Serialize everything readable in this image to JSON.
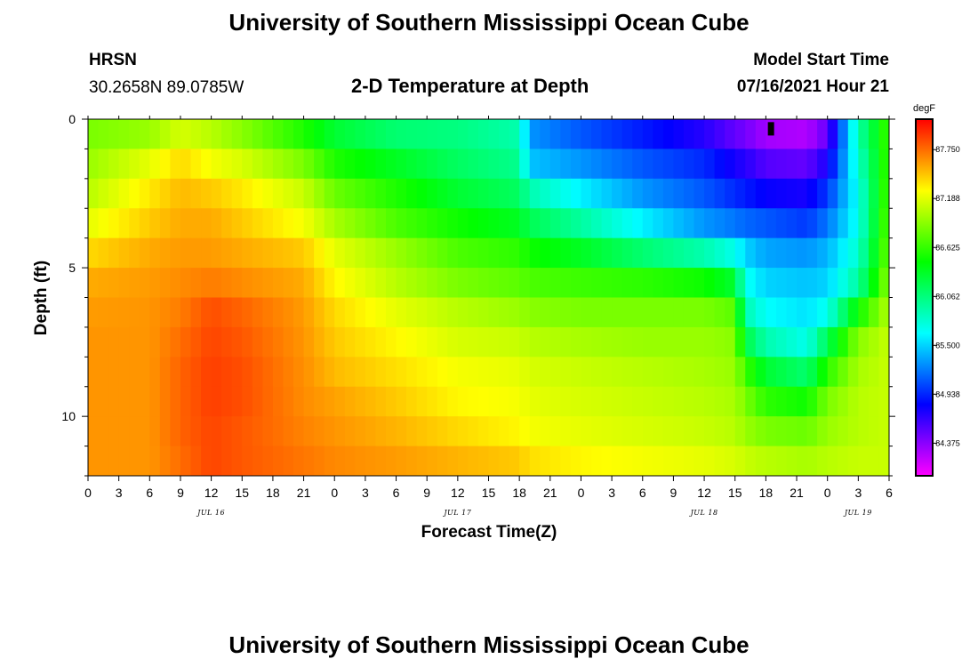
{
  "page": {
    "title_top": "University of Southern Mississippi Ocean Cube",
    "title_bottom": "University of Southern Mississippi Ocean Cube",
    "station": "HRSN",
    "coords": "30.2658N  89.0785W",
    "plot_title": "2-D Temperature at Depth",
    "model_label": "Model Start Time",
    "model_time": "07/16/2021 Hour 21"
  },
  "chart_data": {
    "type": "heatmap",
    "title": "2-D Temperature at Depth",
    "xlabel": "Forecast Time(Z)",
    "ylabel": "Depth (ft)",
    "x_range_hours": [
      0,
      78
    ],
    "x_tick_labels": [
      "0",
      "3",
      "6",
      "9",
      "12",
      "15",
      "18",
      "21",
      "0",
      "3",
      "6",
      "9",
      "12",
      "15",
      "18",
      "21",
      "0",
      "3",
      "6",
      "9",
      "12",
      "15",
      "18",
      "21",
      "0",
      "3",
      "6"
    ],
    "date_labels": [
      {
        "label": "JUL 16",
        "hour": 12
      },
      {
        "label": "JUL 17",
        "hour": 36
      },
      {
        "label": "JUL 18",
        "hour": 60
      },
      {
        "label": "JUL 19",
        "hour": 75
      }
    ],
    "y_range": [
      0,
      12
    ],
    "y_ticks": [
      0,
      5,
      10
    ],
    "y_inverted": true,
    "colorbar": {
      "unit": "degF",
      "min": 84.0,
      "max": 88.1,
      "labels": [
        "87.750",
        "87.188",
        "86.625",
        "86.062",
        "85.500",
        "84.938",
        "84.375"
      ],
      "values": [
        87.75,
        87.188,
        86.625,
        86.062,
        85.5,
        84.938,
        84.375
      ]
    },
    "depths_ft": [
      0.5,
      1.5,
      2.5,
      3.5,
      4.5,
      5.5,
      6.5,
      7.5,
      8.5,
      9.5,
      10.5,
      11.5
    ],
    "profiles": [
      {
        "hour": 0,
        "temps": [
          86.85,
          86.95,
          87.05,
          87.2,
          87.4,
          87.55,
          87.6,
          87.62,
          87.62,
          87.62,
          87.62,
          87.62
        ]
      },
      {
        "hour": 6,
        "temps": [
          86.95,
          87.2,
          87.35,
          87.45,
          87.55,
          87.6,
          87.62,
          87.62,
          87.62,
          87.62,
          87.62,
          87.62
        ]
      },
      {
        "hour": 9,
        "temps": [
          87.15,
          87.4,
          87.5,
          87.55,
          87.6,
          87.65,
          87.7,
          87.75,
          87.78,
          87.78,
          87.78,
          87.75
        ]
      },
      {
        "hour": 12,
        "temps": [
          87.05,
          87.25,
          87.45,
          87.55,
          87.6,
          87.7,
          87.85,
          87.88,
          87.9,
          87.9,
          87.88,
          87.88
        ]
      },
      {
        "hour": 15,
        "temps": [
          86.9,
          87.15,
          87.35,
          87.45,
          87.55,
          87.65,
          87.78,
          87.82,
          87.85,
          87.85,
          87.82,
          87.82
        ]
      },
      {
        "hour": 21,
        "temps": [
          86.55,
          86.85,
          87.1,
          87.25,
          87.45,
          87.55,
          87.6,
          87.62,
          87.64,
          87.65,
          87.68,
          87.72
        ]
      },
      {
        "hour": 24,
        "temps": [
          86.3,
          86.55,
          86.8,
          87.0,
          87.2,
          87.3,
          87.4,
          87.45,
          87.5,
          87.58,
          87.62,
          87.66
        ]
      },
      {
        "hour": 30,
        "temps": [
          86.1,
          86.35,
          86.55,
          86.7,
          86.95,
          87.05,
          87.2,
          87.3,
          87.38,
          87.45,
          87.52,
          87.6
        ]
      },
      {
        "hour": 36,
        "temps": [
          86.05,
          86.15,
          86.3,
          86.5,
          86.7,
          86.85,
          87.05,
          87.15,
          87.25,
          87.3,
          87.4,
          87.52
        ]
      },
      {
        "hour": 42,
        "temps": [
          85.9,
          86.0,
          86.15,
          86.35,
          86.6,
          86.75,
          86.95,
          87.1,
          87.2,
          87.25,
          87.3,
          87.45
        ]
      },
      {
        "hour": 43,
        "temps": [
          85.3,
          85.45,
          85.9,
          86.2,
          86.5,
          86.7,
          86.9,
          87.05,
          87.15,
          87.2,
          87.25,
          87.38
        ]
      },
      {
        "hour": 48,
        "temps": [
          85.1,
          85.3,
          85.6,
          85.95,
          86.35,
          86.65,
          86.85,
          87.0,
          87.1,
          87.15,
          87.2,
          87.3
        ]
      },
      {
        "hour": 54,
        "temps": [
          84.9,
          85.1,
          85.3,
          85.6,
          86.1,
          86.6,
          86.85,
          86.95,
          87.05,
          87.1,
          87.15,
          87.25
        ]
      },
      {
        "hour": 60,
        "temps": [
          84.7,
          84.95,
          85.1,
          85.3,
          85.9,
          86.5,
          86.85,
          86.95,
          87.0,
          87.05,
          87.1,
          87.2
        ]
      },
      {
        "hour": 63,
        "temps": [
          84.5,
          84.75,
          84.95,
          85.2,
          85.7,
          86.3,
          86.75,
          86.9,
          86.95,
          87.0,
          87.05,
          87.15
        ]
      },
      {
        "hour": 64,
        "temps": [
          84.45,
          84.7,
          84.9,
          85.15,
          85.5,
          85.7,
          85.9,
          86.25,
          86.65,
          86.85,
          86.95,
          87.1
        ]
      },
      {
        "hour": 66,
        "temps": [
          84.3,
          84.55,
          84.8,
          85.1,
          85.35,
          85.5,
          85.65,
          85.9,
          86.3,
          86.6,
          86.85,
          87.05
        ]
      },
      {
        "hour": 70,
        "temps": [
          84.25,
          84.5,
          84.75,
          85.0,
          85.3,
          85.45,
          85.55,
          85.7,
          86.1,
          86.5,
          86.8,
          87.0
        ]
      },
      {
        "hour": 72,
        "temps": [
          84.5,
          84.75,
          85.0,
          85.2,
          85.4,
          85.5,
          85.7,
          86.2,
          86.6,
          86.85,
          86.95,
          87.05
        ]
      },
      {
        "hour": 75,
        "temps": [
          85.9,
          85.8,
          85.7,
          85.7,
          85.8,
          85.95,
          86.5,
          86.9,
          87.0,
          87.05,
          87.05,
          87.1
        ]
      },
      {
        "hour": 78,
        "temps": [
          86.7,
          86.7,
          86.75,
          86.8,
          86.85,
          86.95,
          87.05,
          87.1,
          87.1,
          87.1,
          87.1,
          87.1
        ]
      }
    ],
    "marker": {
      "hour": 66.5,
      "depth_from": 0.1,
      "depth_to": 0.55
    }
  }
}
